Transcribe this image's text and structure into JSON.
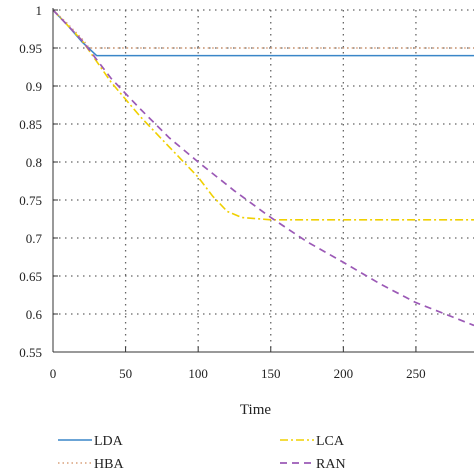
{
  "chart_data": {
    "type": "line",
    "title": "",
    "xlabel": "Time",
    "ylabel": "",
    "xlim": [
      0,
      290
    ],
    "ylim": [
      0.55,
      1.0
    ],
    "xticks": [
      0,
      50,
      100,
      150,
      200,
      250
    ],
    "yticks": [
      0.55,
      0.6,
      0.65,
      0.7,
      0.75,
      0.8,
      0.85,
      0.9,
      0.95,
      1
    ],
    "xtick_labels": [
      "0",
      "50",
      "100",
      "150",
      "200",
      "250"
    ],
    "ytick_labels": [
      "0.55",
      "0.6",
      "0.65",
      "0.7",
      "0.75",
      "0.8",
      "0.85",
      "0.9",
      "0.95",
      "1"
    ],
    "grid": "dotted",
    "legend_placement": "bottom",
    "series": [
      {
        "name": "LDA",
        "color": "#3a86c8",
        "style": "solid",
        "points": [
          [
            0,
            1.0
          ],
          [
            10,
            0.98
          ],
          [
            20,
            0.958
          ],
          [
            30,
            0.94
          ],
          [
            290,
            0.94
          ]
        ]
      },
      {
        "name": "HBA",
        "color": "#d9a07a",
        "style": "dotted",
        "points": [
          [
            0,
            1.0
          ],
          [
            10,
            0.982
          ],
          [
            20,
            0.962
          ],
          [
            25,
            0.95
          ],
          [
            290,
            0.95
          ]
        ]
      },
      {
        "name": "LCA",
        "color": "#f0d000",
        "style": "dashdot",
        "points": [
          [
            0,
            1.0
          ],
          [
            20,
            0.96
          ],
          [
            40,
            0.905
          ],
          [
            60,
            0.86
          ],
          [
            80,
            0.82
          ],
          [
            100,
            0.78
          ],
          [
            110,
            0.755
          ],
          [
            120,
            0.735
          ],
          [
            130,
            0.727
          ],
          [
            150,
            0.724
          ],
          [
            290,
            0.724
          ]
        ]
      },
      {
        "name": "RAN",
        "color": "#9b59b6",
        "style": "dashed",
        "points": [
          [
            0,
            1.0
          ],
          [
            20,
            0.96
          ],
          [
            40,
            0.91
          ],
          [
            60,
            0.87
          ],
          [
            80,
            0.832
          ],
          [
            100,
            0.8
          ],
          [
            125,
            0.762
          ],
          [
            150,
            0.727
          ],
          [
            175,
            0.695
          ],
          [
            200,
            0.668
          ],
          [
            225,
            0.64
          ],
          [
            250,
            0.615
          ],
          [
            270,
            0.6
          ],
          [
            290,
            0.585
          ]
        ]
      }
    ]
  }
}
